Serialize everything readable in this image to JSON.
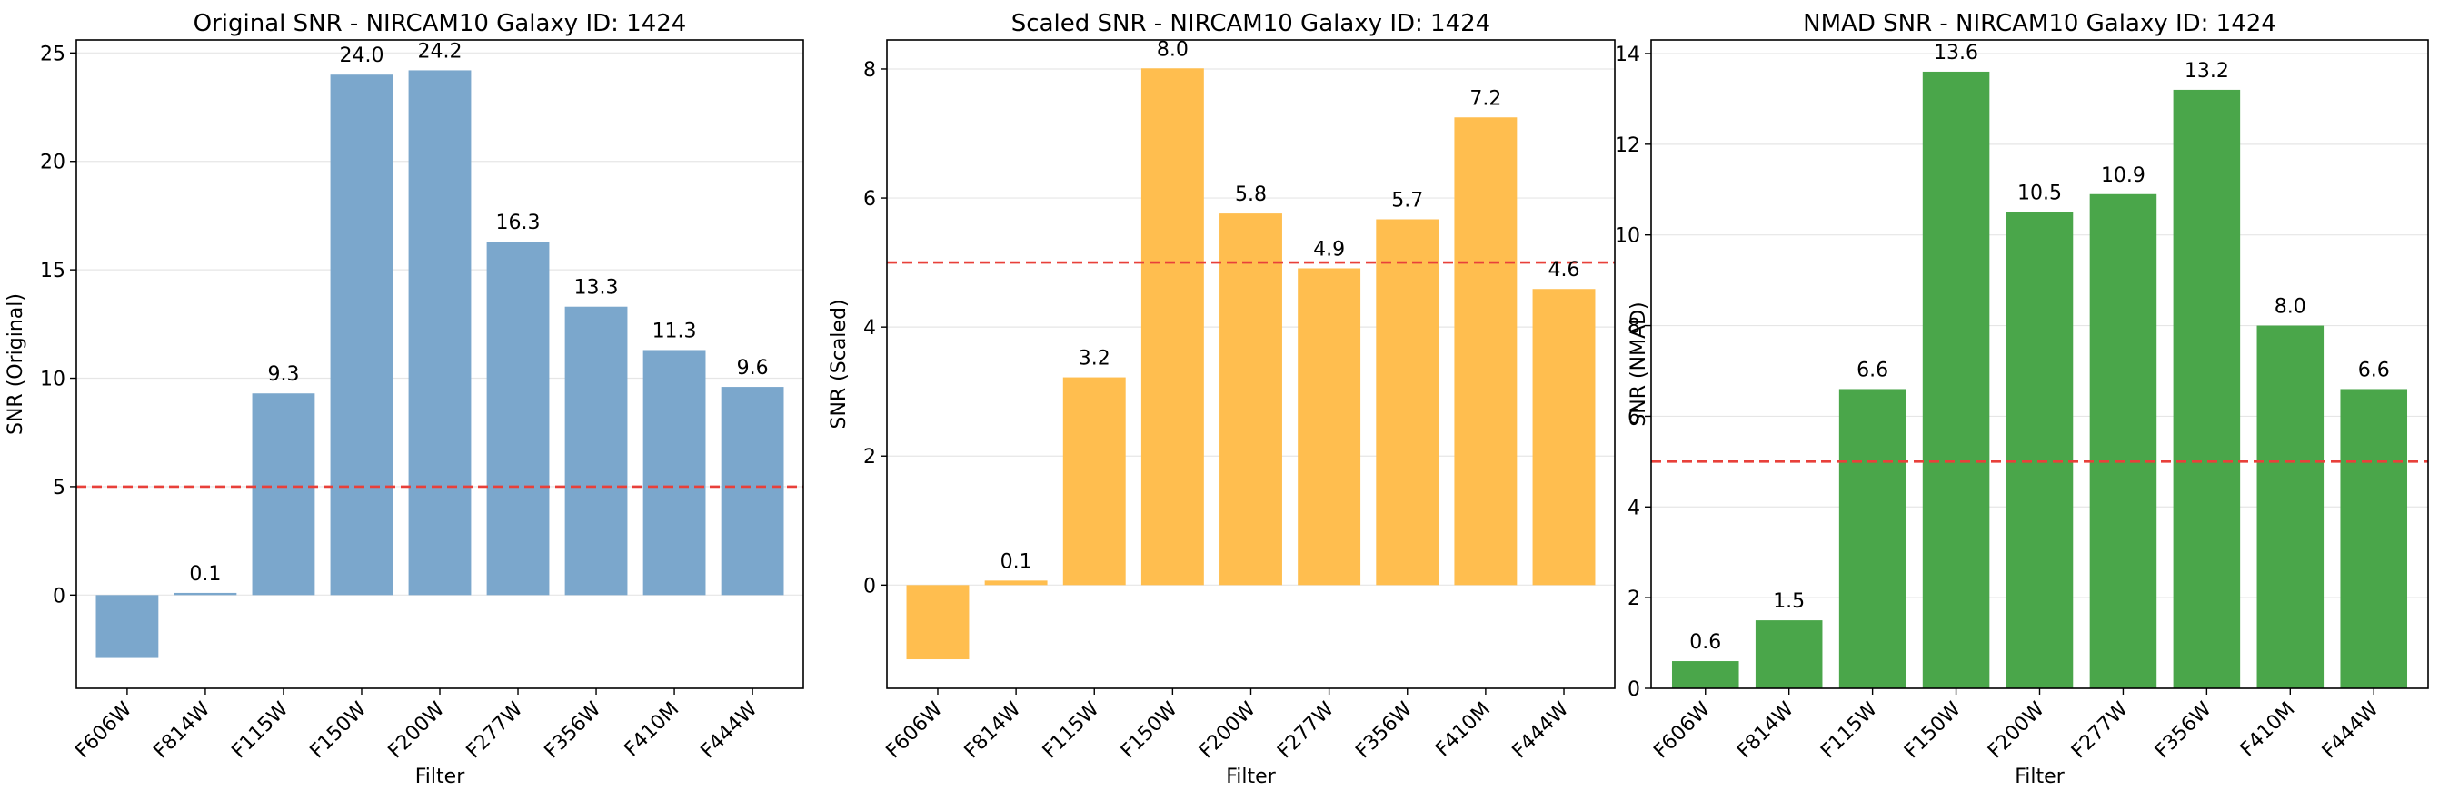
{
  "chart_data": [
    {
      "type": "bar",
      "title": "Original SNR - NIRCAM10 Galaxy ID: 1424",
      "xlabel": "Filter",
      "ylabel": "SNR (Original)",
      "categories": [
        "F606W",
        "F814W",
        "F115W",
        "F150W",
        "F200W",
        "F277W",
        "F356W",
        "F410M",
        "F444W"
      ],
      "values": [
        -2.9,
        0.1,
        9.3,
        24.0,
        24.2,
        16.3,
        13.3,
        11.3,
        9.6
      ],
      "value_labels": [
        "",
        "0.1",
        "9.3",
        "24.0",
        "24.2",
        "16.3",
        "13.3",
        "11.3",
        "9.6"
      ],
      "ylim": [
        -4.3,
        25.6
      ],
      "yticks": [
        0,
        5,
        10,
        15,
        20,
        25
      ],
      "ytick_labels": [
        "0",
        "5",
        "10",
        "15",
        "20",
        "25"
      ],
      "threshold": 5,
      "color": "#7ba7cc",
      "threshold_color": "#e8403a",
      "grid": "y"
    },
    {
      "type": "bar",
      "title": "Scaled SNR - NIRCAM10 Galaxy ID: 1424",
      "xlabel": "Filter",
      "ylabel": "SNR (Scaled)",
      "categories": [
        "F606W",
        "F814W",
        "F115W",
        "F150W",
        "F200W",
        "F277W",
        "F356W",
        "F410M",
        "F444W"
      ],
      "values": [
        -1.15,
        0.07,
        3.22,
        8.01,
        5.76,
        4.91,
        5.67,
        7.25,
        4.59
      ],
      "value_labels": [
        "",
        "0.1",
        "3.2",
        "8.0",
        "5.8",
        "4.9",
        "5.7",
        "7.2",
        "4.6"
      ],
      "ylim": [
        -1.6,
        8.45
      ],
      "yticks": [
        0,
        2,
        4,
        6,
        8
      ],
      "ytick_labels": [
        "0",
        "2",
        "4",
        "6",
        "8"
      ],
      "threshold": 5,
      "color": "#ffbe4f",
      "threshold_color": "#e8403a",
      "grid": "y"
    },
    {
      "type": "bar",
      "title": "NMAD SNR - NIRCAM10 Galaxy ID: 1424",
      "xlabel": "Filter",
      "ylabel": "SNR (NMAD)",
      "categories": [
        "F606W",
        "F814W",
        "F115W",
        "F150W",
        "F200W",
        "F277W",
        "F356W",
        "F410M",
        "F444W"
      ],
      "values": [
        0.6,
        1.5,
        6.6,
        13.6,
        10.5,
        10.9,
        13.2,
        8.0,
        6.6
      ],
      "value_labels": [
        "0.6",
        "1.5",
        "6.6",
        "13.6",
        "10.5",
        "10.9",
        "13.2",
        "8.0",
        "6.6"
      ],
      "ylim": [
        0,
        14.3
      ],
      "yticks": [
        0,
        2,
        4,
        6,
        8,
        10,
        12,
        14
      ],
      "ytick_labels": [
        "0",
        "2",
        "4",
        "6",
        "8",
        "10",
        "12",
        "14"
      ],
      "threshold": 5,
      "color": "#4aa64a",
      "threshold_color": "#e8403a",
      "grid": "y"
    }
  ]
}
